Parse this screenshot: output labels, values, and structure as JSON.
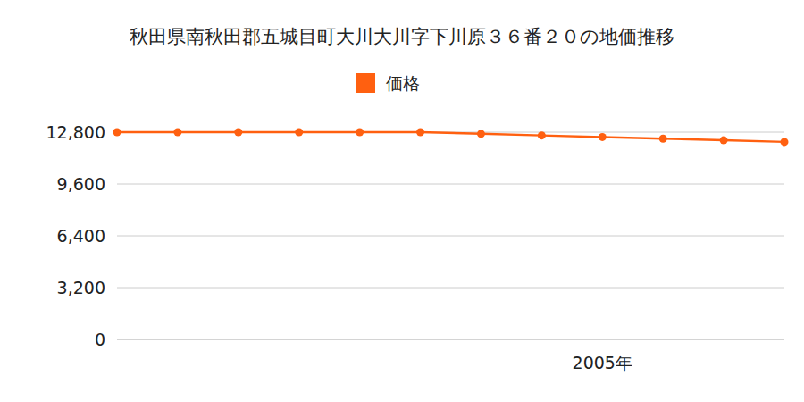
{
  "chart_data": {
    "type": "line",
    "title": "秋田県南秋田郡五城目町大川大川字下川原３６番２０の地価推移",
    "categories": [
      null,
      null,
      null,
      null,
      null,
      null,
      null,
      null,
      "2005年",
      null,
      null,
      null
    ],
    "series": [
      {
        "name": "価格",
        "color": "#ff6010",
        "marker": "circle",
        "values": [
          12800,
          12800,
          12800,
          12800,
          12800,
          12800,
          12700,
          12600,
          12500,
          12400,
          12300,
          12200
        ]
      }
    ],
    "ylim": [
      0,
      12800
    ],
    "yticks": [
      0,
      {
        "value": 3200,
        "label": "3,200"
      },
      {
        "value": 6400,
        "label": "6,400"
      },
      {
        "value": 9600,
        "label": "9,600"
      },
      {
        "value": 12800,
        "label": "12,800"
      }
    ],
    "grid": true,
    "legend": "top"
  }
}
